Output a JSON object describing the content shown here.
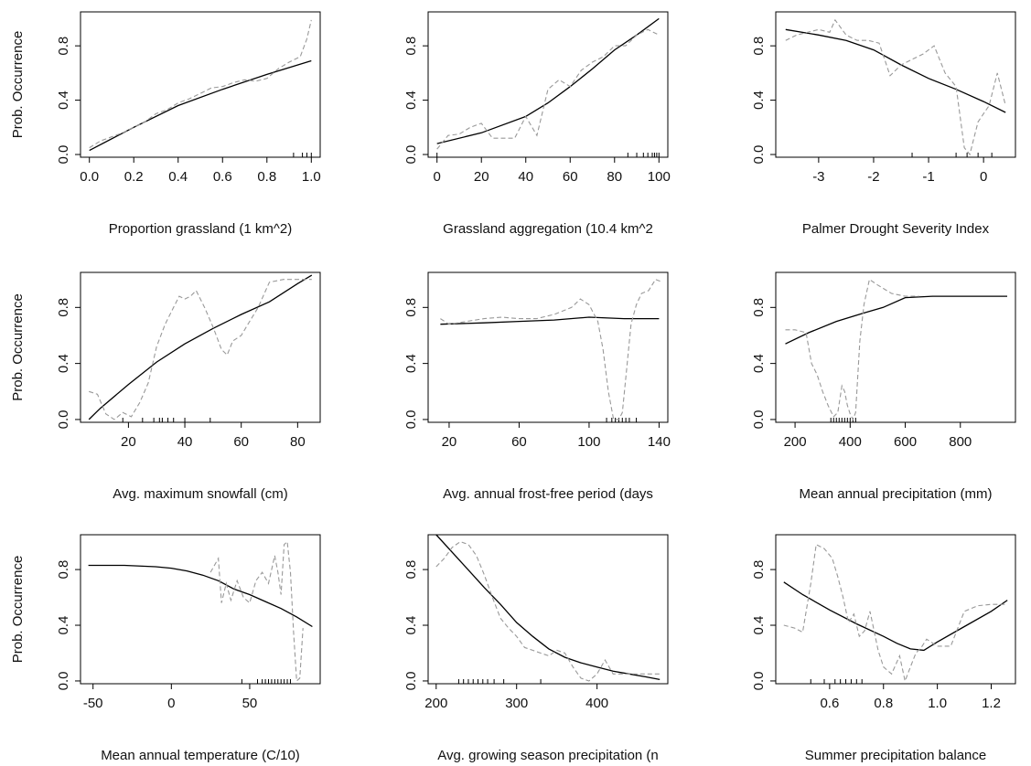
{
  "figure": {
    "ylabel": "Prob. Occurrence"
  },
  "chart_data": [
    {
      "type": "line",
      "xlabel": "Proportion grassland (1 km^2)",
      "ylabel": "Prob. Occurrence",
      "xlim": [
        -0.04,
        1.04
      ],
      "ylim": [
        -0.02,
        1.05
      ],
      "xticks": [
        0,
        0.2,
        0.4,
        0.6,
        0.8,
        1.0
      ],
      "xtick_labels": [
        "0.0",
        "0.2",
        "0.4",
        "0.6",
        "0.8",
        "1.0"
      ],
      "yticks": [
        0,
        0.4,
        0.8
      ],
      "ytick_labels": [
        "0.0",
        "0.4",
        "0.8"
      ],
      "rug": [
        0.92,
        0.96,
        0.98,
        1.0
      ],
      "series": [
        {
          "role": "fitted",
          "x": [
            0,
            0.2,
            0.4,
            0.6,
            0.8,
            1.0
          ],
          "y": [
            0.03,
            0.2,
            0.36,
            0.48,
            0.59,
            0.69
          ]
        },
        {
          "role": "observed",
          "x": [
            0,
            0.05,
            0.1,
            0.15,
            0.2,
            0.25,
            0.3,
            0.35,
            0.4,
            0.45,
            0.5,
            0.55,
            0.6,
            0.65,
            0.7,
            0.75,
            0.8,
            0.85,
            0.9,
            0.95,
            0.98,
            1.0
          ],
          "y": [
            0.05,
            0.1,
            0.13,
            0.16,
            0.2,
            0.24,
            0.3,
            0.33,
            0.38,
            0.41,
            0.45,
            0.49,
            0.5,
            0.53,
            0.55,
            0.54,
            0.56,
            0.63,
            0.68,
            0.72,
            0.85,
            0.99
          ]
        }
      ]
    },
    {
      "type": "line",
      "xlabel": "Grassland aggregation (10.4 km^2",
      "ylabel": "",
      "xlim": [
        -4,
        104
      ],
      "ylim": [
        -0.02,
        1.05
      ],
      "xticks": [
        0,
        20,
        40,
        60,
        80,
        100
      ],
      "xtick_labels": [
        "0",
        "20",
        "40",
        "60",
        "80",
        "100"
      ],
      "yticks": [
        0,
        0.4,
        0.8
      ],
      "ytick_labels": [
        "0.0",
        "0.4",
        "0.8"
      ],
      "rug": [
        0,
        86,
        90,
        93,
        95,
        97,
        98,
        99,
        100
      ],
      "series": [
        {
          "role": "fitted",
          "x": [
            0,
            20,
            40,
            50,
            60,
            70,
            80,
            90,
            100
          ],
          "y": [
            0.08,
            0.16,
            0.28,
            0.38,
            0.5,
            0.63,
            0.77,
            0.88,
            1.0
          ]
        },
        {
          "role": "observed",
          "x": [
            0,
            5,
            10,
            15,
            20,
            25,
            30,
            35,
            40,
            45,
            50,
            55,
            60,
            65,
            70,
            75,
            80,
            85,
            90,
            95,
            100
          ],
          "y": [
            0.04,
            0.14,
            0.15,
            0.2,
            0.23,
            0.12,
            0.12,
            0.12,
            0.28,
            0.14,
            0.48,
            0.55,
            0.5,
            0.62,
            0.68,
            0.72,
            0.8,
            0.8,
            0.88,
            0.92,
            0.88
          ]
        }
      ]
    },
    {
      "type": "line",
      "xlabel": "Palmer Drought Severity Index",
      "ylabel": "",
      "xlim": [
        -3.78,
        0.58
      ],
      "ylim": [
        -0.02,
        1.05
      ],
      "xticks": [
        -3,
        -2,
        -1,
        0
      ],
      "xtick_labels": [
        "-3",
        "-2",
        "-1",
        "0"
      ],
      "yticks": [
        0,
        0.4,
        0.8
      ],
      "ytick_labels": [
        "0.0",
        "0.4",
        "0.8"
      ],
      "rug": [
        -1.3,
        -0.5,
        -0.3,
        -0.1,
        0.15
      ],
      "series": [
        {
          "role": "fitted",
          "x": [
            -3.6,
            -3.0,
            -2.5,
            -2.0,
            -1.5,
            -1.0,
            -0.5,
            0.0,
            0.4
          ],
          "y": [
            0.92,
            0.88,
            0.84,
            0.77,
            0.66,
            0.56,
            0.48,
            0.39,
            0.31
          ]
        },
        {
          "role": "observed",
          "x": [
            -3.6,
            -3.4,
            -3.2,
            -3.0,
            -2.8,
            -2.7,
            -2.5,
            -2.3,
            -2.1,
            -1.9,
            -1.7,
            -1.5,
            -1.3,
            -1.1,
            -0.9,
            -0.7,
            -0.5,
            -0.35,
            -0.25,
            -0.1,
            0.0,
            0.1,
            0.25,
            0.4
          ],
          "y": [
            0.84,
            0.88,
            0.9,
            0.92,
            0.9,
            0.99,
            0.88,
            0.84,
            0.84,
            0.82,
            0.58,
            0.66,
            0.7,
            0.74,
            0.8,
            0.6,
            0.5,
            0.05,
            0.0,
            0.24,
            0.3,
            0.36,
            0.6,
            0.36
          ]
        }
      ]
    },
    {
      "type": "line",
      "xlabel": "Avg. maximum snowfall (cm)",
      "ylabel": "Prob. Occurrence",
      "xlim": [
        3,
        88
      ],
      "ylim": [
        -0.02,
        1.05
      ],
      "xticks": [
        20,
        40,
        60,
        80
      ],
      "xtick_labels": [
        "20",
        "40",
        "60",
        "80"
      ],
      "yticks": [
        0,
        0.4,
        0.8
      ],
      "ytick_labels": [
        "0.0",
        "0.4",
        "0.8"
      ],
      "rug": [
        18,
        25,
        29,
        31,
        32,
        34,
        36,
        40,
        49
      ],
      "series": [
        {
          "role": "fitted",
          "x": [
            6,
            10,
            20,
            30,
            40,
            50,
            60,
            70,
            80,
            85
          ],
          "y": [
            0.0,
            0.08,
            0.25,
            0.41,
            0.54,
            0.65,
            0.75,
            0.84,
            0.97,
            1.03
          ]
        },
        {
          "role": "observed",
          "x": [
            6,
            9,
            12,
            15,
            18,
            21,
            24,
            27,
            30,
            33,
            36,
            38,
            40,
            42,
            44,
            47,
            50,
            53,
            55,
            57,
            60,
            63,
            66,
            70,
            75,
            80,
            85
          ],
          "y": [
            0.2,
            0.18,
            0.04,
            0.0,
            0.05,
            0.02,
            0.12,
            0.26,
            0.52,
            0.68,
            0.8,
            0.88,
            0.86,
            0.88,
            0.92,
            0.8,
            0.66,
            0.5,
            0.46,
            0.56,
            0.6,
            0.7,
            0.8,
            0.98,
            1.0,
            1.0,
            1.0
          ]
        }
      ]
    },
    {
      "type": "line",
      "xlabel": "Avg. annual frost-free period (days",
      "ylabel": "",
      "xlim": [
        8,
        145
      ],
      "ylim": [
        -0.02,
        1.05
      ],
      "xticks": [
        20,
        60,
        100,
        140
      ],
      "xtick_labels": [
        "20",
        "60",
        "100",
        "140"
      ],
      "yticks": [
        0,
        0.4,
        0.8
      ],
      "ytick_labels": [
        "0.0",
        "0.4",
        "0.8"
      ],
      "rug": [
        110,
        113,
        115,
        117,
        119,
        121,
        123,
        127
      ],
      "series": [
        {
          "role": "fitted",
          "x": [
            15,
            40,
            60,
            80,
            100,
            120,
            140
          ],
          "y": [
            0.68,
            0.69,
            0.7,
            0.71,
            0.73,
            0.72,
            0.72
          ]
        },
        {
          "role": "observed",
          "x": [
            15,
            20,
            30,
            40,
            50,
            60,
            70,
            80,
            90,
            95,
            100,
            105,
            108,
            111,
            114,
            117,
            119,
            121,
            124,
            127,
            130,
            134,
            138,
            142
          ],
          "y": [
            0.72,
            0.68,
            0.7,
            0.72,
            0.73,
            0.72,
            0.72,
            0.75,
            0.8,
            0.86,
            0.82,
            0.7,
            0.5,
            0.2,
            0.0,
            0.0,
            0.05,
            0.3,
            0.68,
            0.82,
            0.9,
            0.92,
            1.0,
            0.98
          ]
        }
      ]
    },
    {
      "type": "line",
      "xlabel": "Mean annual precipitation (mm)",
      "ylabel": "",
      "xlim": [
        130,
        1000
      ],
      "ylim": [
        -0.02,
        1.05
      ],
      "xticks": [
        200,
        400,
        600,
        800
      ],
      "xtick_labels": [
        "200",
        "400",
        "600",
        "800"
      ],
      "yticks": [
        0,
        0.4,
        0.8
      ],
      "ytick_labels": [
        "0.0",
        "0.4",
        "0.8"
      ],
      "rug": [
        330,
        340,
        350,
        360,
        370,
        380,
        390,
        400,
        410,
        420
      ],
      "series": [
        {
          "role": "fitted",
          "x": [
            165,
            250,
            350,
            450,
            520,
            600,
            700,
            800,
            970
          ],
          "y": [
            0.54,
            0.62,
            0.7,
            0.76,
            0.8,
            0.87,
            0.88,
            0.88,
            0.88
          ]
        },
        {
          "role": "observed",
          "x": [
            165,
            200,
            240,
            260,
            280,
            300,
            320,
            340,
            355,
            370,
            380,
            390,
            400,
            410,
            420,
            435,
            450,
            470,
            500,
            550,
            600,
            650
          ],
          "y": [
            0.64,
            0.64,
            0.62,
            0.4,
            0.32,
            0.2,
            0.1,
            0.02,
            0.05,
            0.24,
            0.2,
            0.1,
            0.04,
            0.0,
            0.05,
            0.56,
            0.82,
            1.0,
            0.96,
            0.9,
            0.88,
            0.88
          ]
        }
      ]
    },
    {
      "type": "line",
      "xlabel": "Mean annual temperature (C/10)",
      "ylabel": "Prob. Occurrence",
      "xlim": [
        -58,
        95
      ],
      "ylim": [
        -0.02,
        1.05
      ],
      "xticks": [
        -50,
        0,
        50
      ],
      "xtick_labels": [
        "-50",
        "0",
        "50"
      ],
      "yticks": [
        0,
        0.4,
        0.8
      ],
      "ytick_labels": [
        "0.0",
        "0.4",
        "0.8"
      ],
      "rug": [
        45,
        55,
        58,
        60,
        62,
        64,
        66,
        68,
        70,
        72,
        74,
        76
      ],
      "series": [
        {
          "role": "fitted",
          "x": [
            -53,
            -30,
            -10,
            0,
            10,
            20,
            30,
            40,
            50,
            60,
            70,
            80,
            90
          ],
          "y": [
            0.83,
            0.83,
            0.82,
            0.81,
            0.79,
            0.76,
            0.72,
            0.66,
            0.62,
            0.57,
            0.52,
            0.46,
            0.39
          ]
        },
        {
          "role": "observed",
          "x": [
            25,
            30,
            32,
            35,
            38,
            42,
            46,
            50,
            54,
            58,
            62,
            66,
            68,
            70,
            72,
            74,
            76,
            78,
            80,
            82,
            84
          ],
          "y": [
            0.78,
            0.88,
            0.56,
            0.7,
            0.58,
            0.72,
            0.6,
            0.56,
            0.72,
            0.78,
            0.7,
            0.9,
            0.78,
            0.62,
            0.98,
            1.0,
            0.78,
            0.35,
            0.0,
            0.02,
            0.38
          ]
        }
      ]
    },
    {
      "type": "line",
      "xlabel": "Avg. growing season precipitation (n",
      "ylabel": "",
      "xlim": [
        190,
        488
      ],
      "ylim": [
        -0.02,
        1.05
      ],
      "xticks": [
        200,
        300,
        400
      ],
      "xtick_labels": [
        "200",
        "300",
        "400"
      ],
      "yticks": [
        0,
        0.4,
        0.8
      ],
      "ytick_labels": [
        "0.0",
        "0.4",
        "0.8"
      ],
      "rug": [
        228,
        234,
        240,
        246,
        252,
        258,
        264,
        272,
        284,
        330
      ],
      "series": [
        {
          "role": "fitted",
          "x": [
            200,
            230,
            260,
            280,
            300,
            320,
            340,
            360,
            380,
            400,
            420,
            440,
            460,
            478
          ],
          "y": [
            1.05,
            0.86,
            0.67,
            0.55,
            0.42,
            0.32,
            0.23,
            0.17,
            0.13,
            0.1,
            0.07,
            0.05,
            0.03,
            0.01
          ]
        },
        {
          "role": "observed",
          "x": [
            200,
            210,
            220,
            230,
            240,
            250,
            260,
            270,
            280,
            290,
            300,
            310,
            320,
            330,
            340,
            350,
            360,
            370,
            380,
            390,
            400,
            410,
            420,
            440,
            460,
            478
          ],
          "y": [
            0.82,
            0.88,
            0.96,
            1.0,
            0.98,
            0.9,
            0.76,
            0.6,
            0.45,
            0.38,
            0.32,
            0.24,
            0.22,
            0.2,
            0.18,
            0.22,
            0.2,
            0.1,
            0.02,
            0.0,
            0.05,
            0.15,
            0.05,
            0.05,
            0.05,
            0.05
          ]
        }
      ]
    },
    {
      "type": "line",
      "xlabel": "Summer precipitation balance",
      "ylabel": "",
      "xlim": [
        0.4,
        1.29
      ],
      "ylim": [
        -0.02,
        1.05
      ],
      "xticks": [
        0.6,
        0.8,
        1.0,
        1.2
      ],
      "xtick_labels": [
        "0.6",
        "0.8",
        "1.0",
        "1.2"
      ],
      "yticks": [
        0,
        0.4,
        0.8
      ],
      "ytick_labels": [
        "0.0",
        "0.4",
        "0.8"
      ],
      "rug": [
        0.53,
        0.58,
        0.62,
        0.64,
        0.66,
        0.68,
        0.7,
        0.72
      ],
      "series": [
        {
          "role": "fitted",
          "x": [
            0.43,
            0.5,
            0.6,
            0.7,
            0.8,
            0.85,
            0.9,
            0.95,
            1.0,
            1.1,
            1.2,
            1.26
          ],
          "y": [
            0.71,
            0.62,
            0.51,
            0.41,
            0.32,
            0.27,
            0.23,
            0.22,
            0.28,
            0.39,
            0.5,
            0.58
          ]
        },
        {
          "role": "observed",
          "x": [
            0.43,
            0.47,
            0.5,
            0.53,
            0.55,
            0.58,
            0.61,
            0.63,
            0.65,
            0.67,
            0.69,
            0.71,
            0.73,
            0.75,
            0.78,
            0.8,
            0.83,
            0.86,
            0.88,
            0.9,
            0.92,
            0.94,
            0.96,
            1.0,
            1.05,
            1.08,
            1.1,
            1.15,
            1.2,
            1.26
          ],
          "y": [
            0.4,
            0.38,
            0.35,
            0.7,
            0.98,
            0.95,
            0.88,
            0.75,
            0.6,
            0.42,
            0.48,
            0.32,
            0.36,
            0.5,
            0.22,
            0.1,
            0.05,
            0.18,
            0.0,
            0.1,
            0.2,
            0.24,
            0.3,
            0.25,
            0.25,
            0.4,
            0.5,
            0.54,
            0.55,
            0.55
          ]
        }
      ]
    }
  ]
}
